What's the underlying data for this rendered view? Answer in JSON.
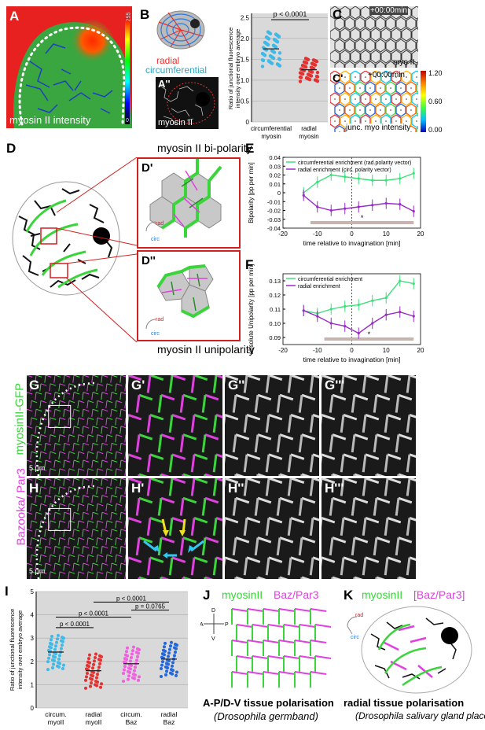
{
  "panelA": {
    "label": "A",
    "caption": "myosin II intensity",
    "scale_max": "255",
    "scale_min": "0"
  },
  "panelB": {
    "label": "B",
    "radial": "radial",
    "circumferential": "circumferential",
    "pvalue": "p < 0.0001",
    "ylabel": "Ratio of junctional fluorescence intensity over embryo average",
    "categories": [
      "circumferential myosin",
      "radial myosin"
    ],
    "ticks": [
      "0",
      "0.5",
      "1.0",
      "1.5",
      "2.0",
      "2.5"
    ]
  },
  "panelA2": {
    "label": "A''",
    "caption": "myosin II"
  },
  "panelC": {
    "label": "C",
    "time": "+00:00min",
    "caption": "myo II"
  },
  "panelC2": {
    "label": "C'",
    "time": "+00:00min",
    "caption": "junc. myo intensity",
    "scale": [
      "1.20",
      "0.60",
      "0.00"
    ]
  },
  "panelD": {
    "label": "D",
    "title_top": "myosin II bi-polarity",
    "title_bottom": "myosin II unipolarity",
    "sub1": "D'",
    "sub2": "D''",
    "rad": "rad",
    "circ": "circ"
  },
  "panelE": {
    "label": "E",
    "legend": [
      "circumferential enrichment (rad.polarity vector)",
      "radial enrichment (circ. polarity vector)"
    ],
    "ylabel": "Bipolarity [pp per min]",
    "xlabel": "time relative to invagination [min]",
    "xticks": [
      "-20",
      "-10",
      "0",
      "10",
      "20"
    ],
    "yticks": [
      "0.04",
      "0.03",
      "0.02",
      "0.01",
      "0",
      "-0.01",
      "-0.02",
      "-0.03",
      "-0.04"
    ],
    "star": "*"
  },
  "panelF": {
    "label": "F",
    "legend": [
      "circumferential enrichment",
      "radial enrichment"
    ],
    "ylabel": "absolute Unipolarity [pp per min]",
    "xlabel": "time relative to invagination [min]",
    "xticks": [
      "-20",
      "-10",
      "0",
      "10",
      "20"
    ],
    "yticks": [
      "0.13",
      "0.12",
      "0.11",
      "0.10",
      "0.09"
    ],
    "star": "*"
  },
  "panelG": {
    "label": "G",
    "side": "myosinII-GFP",
    "scale": "5 μm",
    "l2": "G'",
    "l3": "G''",
    "l4": "G'''"
  },
  "panelH": {
    "label": "H",
    "side": "Bazooka/ Par3",
    "scale": "5 μm",
    "l2": "H'",
    "l3": "H''",
    "l4": "H'''"
  },
  "panelI": {
    "label": "I",
    "ylabel": "Ratio of junctional fluorescence intensity over embryo average",
    "categories": [
      "circum. myoII",
      "radial myoII",
      "circum. Baz",
      "radial Baz"
    ],
    "ticks": [
      "0",
      "1",
      "2",
      "3",
      "4",
      "5"
    ],
    "pvalues": [
      "p < 0.0001",
      "p < 0.0001",
      "p < 0.0001",
      "p = 0.0765"
    ]
  },
  "panelJ": {
    "label": "J",
    "myo": "myosinII",
    "baz": "Baz/Par3",
    "caption": "A-P/D-V tissue polarisation",
    "sub": "(Drosophila germband)",
    "D": "D",
    "V": "V",
    "A": "A",
    "P": "P"
  },
  "panelK": {
    "label": "K",
    "myo": "myosinII",
    "baz": "[Baz/Par3]",
    "caption": "radial tissue polarisation",
    "sub": "(Drosophila salivary gland placode)",
    "rad": "rad",
    "circ": "circ"
  },
  "colors": {
    "green": "#3cd43c",
    "magenta": "#e040e0",
    "red": "#e53030",
    "blue": "#2a7be0",
    "cyan": "#40c0e0"
  },
  "chart_data": [
    {
      "type": "scatter",
      "title": "Panel E",
      "x": [
        -14,
        -10,
        -6,
        -2,
        2,
        6,
        10,
        14,
        18
      ],
      "series": [
        {
          "name": "circumferential enrichment (rad.polarity vector)",
          "values": [
            0.0,
            0.012,
            0.02,
            0.018,
            0.016,
            0.014,
            0.014,
            0.016,
            0.022
          ]
        },
        {
          "name": "radial enrichment (circ. polarity vector)",
          "values": [
            -0.003,
            -0.016,
            -0.02,
            -0.018,
            -0.016,
            -0.014,
            -0.012,
            -0.013,
            -0.021
          ]
        }
      ],
      "xlabel": "time relative to invagination [min]",
      "ylabel": "Bipolarity [pp per min]",
      "xlim": [
        -20,
        20
      ],
      "ylim": [
        -0.04,
        0.04
      ]
    },
    {
      "type": "scatter",
      "title": "Panel F",
      "x": [
        -14,
        -10,
        -6,
        -2,
        2,
        6,
        10,
        14,
        18
      ],
      "series": [
        {
          "name": "circumferential enrichment",
          "values": [
            0.109,
            0.107,
            0.11,
            0.112,
            0.113,
            0.116,
            0.118,
            0.13,
            0.128
          ]
        },
        {
          "name": "radial enrichment",
          "values": [
            0.109,
            0.105,
            0.1,
            0.098,
            0.093,
            0.1,
            0.106,
            0.108,
            0.105
          ]
        }
      ],
      "xlabel": "time relative to invagination [min]",
      "ylabel": "absolute Unipolarity [pp per min]",
      "xlim": [
        -20,
        20
      ],
      "ylim": [
        0.085,
        0.135
      ]
    },
    {
      "type": "bar",
      "title": "Panel B",
      "categories": [
        "circumferential myosin",
        "radial myosin"
      ],
      "values": [
        1.75,
        1.25
      ],
      "ylim": [
        0,
        2.6
      ]
    },
    {
      "type": "bar",
      "title": "Panel I",
      "categories": [
        "circum. myoII",
        "radial myoII",
        "circum. Baz",
        "radial Baz"
      ],
      "values": [
        2.4,
        1.6,
        1.9,
        2.1
      ],
      "ylim": [
        0,
        5
      ]
    }
  ]
}
